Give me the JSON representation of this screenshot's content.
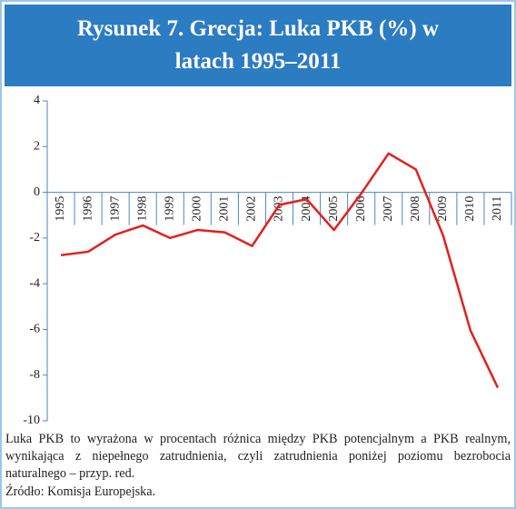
{
  "chart_data": {
    "type": "line",
    "title": "Rysunek 7. Grecja: Luka PKB (%) w latach 1995–2011",
    "categories": [
      "1995",
      "1996",
      "1997",
      "1998",
      "1999",
      "2000",
      "2001",
      "2002",
      "2003",
      "2004",
      "2005",
      "2006",
      "2007",
      "2008",
      "2009",
      "2010",
      "2011"
    ],
    "values": [
      -2.75,
      -2.6,
      -1.85,
      -1.45,
      -2.0,
      -1.65,
      -1.75,
      -2.35,
      -0.55,
      -0.3,
      -1.65,
      -0.05,
      1.7,
      1.0,
      -1.9,
      -6.05,
      -8.55
    ],
    "color": "#e3201b",
    "ylim": [
      -10,
      4
    ],
    "yticks": [
      -10,
      -8,
      -6,
      -4,
      -2,
      0,
      2,
      4
    ],
    "grid": false,
    "note": "Luka PKB to wyrażona w procentach różnica między PKB potencjalnym a PKB realnym, wynikająca z niepełnego zatrudnienia, czyli zatrudnienia poniżej poziomu bezrobocia naturalnego – przyp. red.",
    "source": "Źródło: Komisja Europejska."
  }
}
